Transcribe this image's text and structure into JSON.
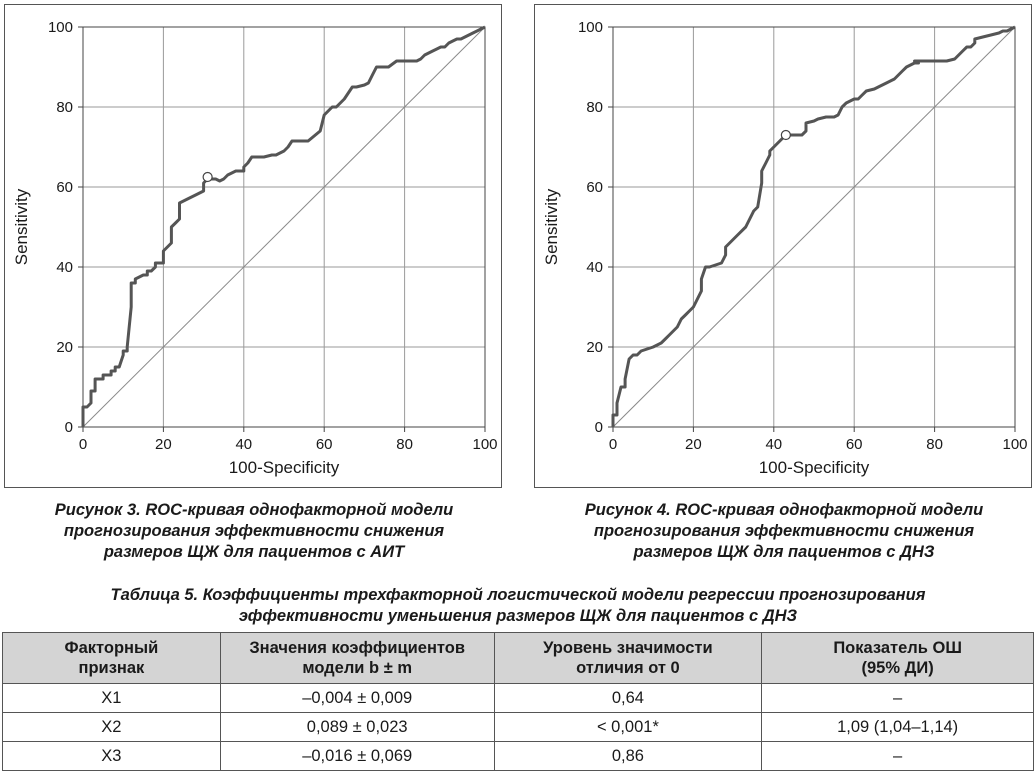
{
  "chart_data": [
    {
      "type": "line",
      "xlabel": "100-Specificity",
      "ylabel": "Sensitivity",
      "xlim": [
        0,
        100
      ],
      "ylim": [
        0,
        100
      ],
      "x_ticks": [
        0,
        20,
        40,
        60,
        80,
        100
      ],
      "y_ticks": [
        0,
        20,
        40,
        60,
        80,
        100
      ],
      "grid": true,
      "reference_line": [
        [
          0,
          0
        ],
        [
          100,
          100
        ]
      ],
      "cutoff_point": {
        "x": 31,
        "y": 62.5
      },
      "series": [
        {
          "x": [
            0,
            0,
            1,
            2,
            2,
            3,
            3,
            5,
            5,
            7,
            7,
            8,
            8,
            9,
            10,
            10,
            11,
            11,
            12,
            12,
            13,
            13,
            15,
            16,
            16,
            17,
            18,
            18,
            20,
            20,
            21,
            22,
            22,
            23,
            24,
            24,
            26,
            28,
            30,
            30,
            31,
            33,
            34,
            35,
            36,
            38,
            39,
            40,
            40,
            41,
            42,
            45,
            47,
            48,
            50,
            51,
            52,
            53,
            56,
            59,
            60,
            61,
            62,
            63,
            65,
            67,
            68,
            70,
            71,
            72,
            73,
            76,
            78,
            80,
            83,
            84,
            85,
            86,
            87,
            88,
            89,
            90,
            91,
            92,
            93,
            94,
            95,
            96,
            97,
            98,
            99,
            100
          ],
          "y": [
            0,
            5,
            5,
            6,
            9,
            9,
            12,
            12,
            13,
            13,
            14,
            14,
            15,
            15,
            18,
            19,
            19,
            20,
            30,
            36,
            36,
            37,
            38,
            38,
            39,
            39,
            40,
            41,
            41,
            44,
            45,
            46,
            50,
            51,
            52,
            56,
            57,
            58,
            59,
            61,
            62,
            62,
            61.5,
            62,
            63,
            64,
            64,
            64,
            65,
            66,
            67.5,
            67.5,
            68,
            68,
            69,
            70,
            71.5,
            71.5,
            71.5,
            74,
            78,
            79,
            80,
            80,
            82,
            85,
            85,
            85.5,
            86,
            88,
            90,
            90,
            91.5,
            91.5,
            91.5,
            92,
            93,
            93.5,
            94,
            94.5,
            95,
            95,
            96,
            96.5,
            97,
            97,
            97.5,
            98,
            98.5,
            99,
            99.5,
            100
          ]
        }
      ]
    },
    {
      "type": "line",
      "xlabel": "100-Specificity",
      "ylabel": "Sensitivity",
      "xlim": [
        0,
        100
      ],
      "ylim": [
        0,
        100
      ],
      "x_ticks": [
        0,
        20,
        40,
        60,
        80,
        100
      ],
      "y_ticks": [
        0,
        20,
        40,
        60,
        80,
        100
      ],
      "grid": true,
      "reference_line": [
        [
          0,
          0
        ],
        [
          100,
          100
        ]
      ],
      "cutoff_point": {
        "x": 43,
        "y": 73
      },
      "series": [
        {
          "x": [
            0,
            0,
            1,
            1,
            2,
            3,
            3,
            4,
            5,
            6,
            7,
            10,
            12,
            13,
            14,
            15,
            16,
            17,
            18,
            19,
            20,
            21,
            22,
            22,
            23,
            24,
            27,
            28,
            28,
            30,
            31,
            33,
            34,
            35,
            36,
            37,
            37,
            38,
            39,
            39,
            40,
            41,
            42,
            43,
            45,
            47,
            48,
            48,
            50,
            51,
            53,
            55,
            56,
            57,
            58,
            60,
            61,
            62,
            63,
            65,
            66,
            68,
            70,
            71,
            72,
            73,
            74,
            75,
            76,
            75,
            77,
            80,
            83,
            85,
            86,
            87,
            88,
            89,
            90,
            90,
            92,
            94,
            96,
            97,
            98,
            99,
            100
          ],
          "y": [
            0,
            3,
            3,
            6,
            10,
            10,
            12,
            17,
            18,
            18,
            19,
            20,
            21,
            22,
            23,
            24,
            25,
            27,
            28,
            29,
            30,
            32,
            34,
            37,
            40,
            40,
            41,
            43,
            45,
            47,
            48,
            50,
            52,
            54,
            55,
            61,
            64,
            66,
            68,
            69,
            70,
            71,
            72,
            73,
            73,
            73,
            74,
            76,
            76.5,
            77,
            77.5,
            77.5,
            78,
            80,
            81,
            82,
            82,
            83,
            84,
            84.5,
            85,
            86,
            87,
            88,
            89,
            90,
            90.5,
            91,
            91,
            91.5,
            91.5,
            91.5,
            91.5,
            92,
            93,
            94,
            95,
            95,
            96,
            97,
            97.5,
            98,
            98.5,
            99,
            99,
            99.5,
            100
          ]
        }
      ]
    }
  ],
  "captions": [
    {
      "line1": "Рисунок 3.  ROC-кривая однофакторной модели",
      "line2": "прогнозирования эффективности снижения",
      "line3": "размеров ЩЖ для пациентов с АИТ"
    },
    {
      "line1": "Рисунок 4.  ROC-кривая однофакторной модели",
      "line2": "прогнозирования эффективности снижения",
      "line3": "размеров ЩЖ для пациентов с ДНЗ"
    }
  ],
  "table": {
    "title_line1": "Таблица 5.  Коэффициенты трехфакторной логистической модели регрессии прогнозирования",
    "title_line2": "эффективности уменьшения размеров ЩЖ для пациентов с ДНЗ",
    "headers": [
      {
        "line1": "Факторный",
        "line2": "признак"
      },
      {
        "line1": "Значения коэффициентов",
        "line2": "модели b ± m"
      },
      {
        "line1": "Уровень значимости",
        "line2": "отличия от 0"
      },
      {
        "line1": "Показатель ОШ",
        "line2": "(95% ДИ)"
      }
    ],
    "rows": [
      [
        "X1",
        "–0,004 ± 0,009",
        "0,64",
        "–"
      ],
      [
        "X2",
        "0,089 ± 0,023",
        "< 0,001*",
        "1,09 (1,04–1,14)"
      ],
      [
        "X3",
        "–0,016 ± 0,069",
        "0,86",
        "–"
      ]
    ]
  }
}
